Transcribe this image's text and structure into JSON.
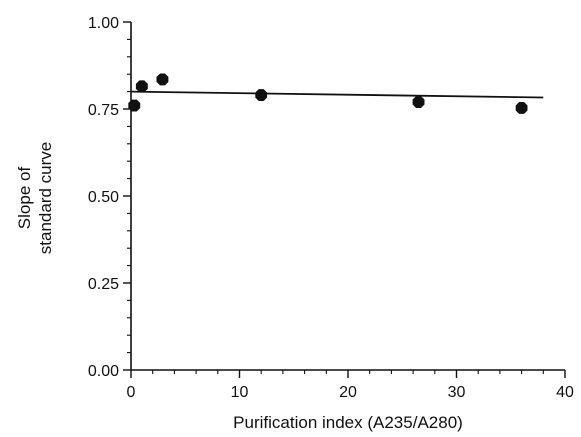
{
  "chart_data": {
    "type": "scatter",
    "xlabel": "Purification index (A235/A280)",
    "ylabel_lines": [
      "Slope of",
      "standard curve"
    ],
    "xlim": [
      0,
      40
    ],
    "ylim": [
      0,
      1.0
    ],
    "x_ticks": [
      0,
      10,
      20,
      30,
      40
    ],
    "y_ticks": [
      "0.00",
      "0.25",
      "0.50",
      "0.75",
      "1.00"
    ],
    "grid": false,
    "series": [
      {
        "points": [
          {
            "x": 0.3,
            "y": 0.76
          },
          {
            "x": 1.0,
            "y": 0.815
          },
          {
            "x": 2.9,
            "y": 0.835
          },
          {
            "x": 12.0,
            "y": 0.79
          },
          {
            "x": 26.5,
            "y": 0.77
          },
          {
            "x": 36.0,
            "y": 0.753
          }
        ]
      }
    ],
    "fit_line": {
      "x": [
        0,
        38
      ],
      "y": [
        0.8,
        0.783
      ]
    },
    "colors": {
      "ink": "#111111",
      "background": "#ffffff"
    }
  }
}
